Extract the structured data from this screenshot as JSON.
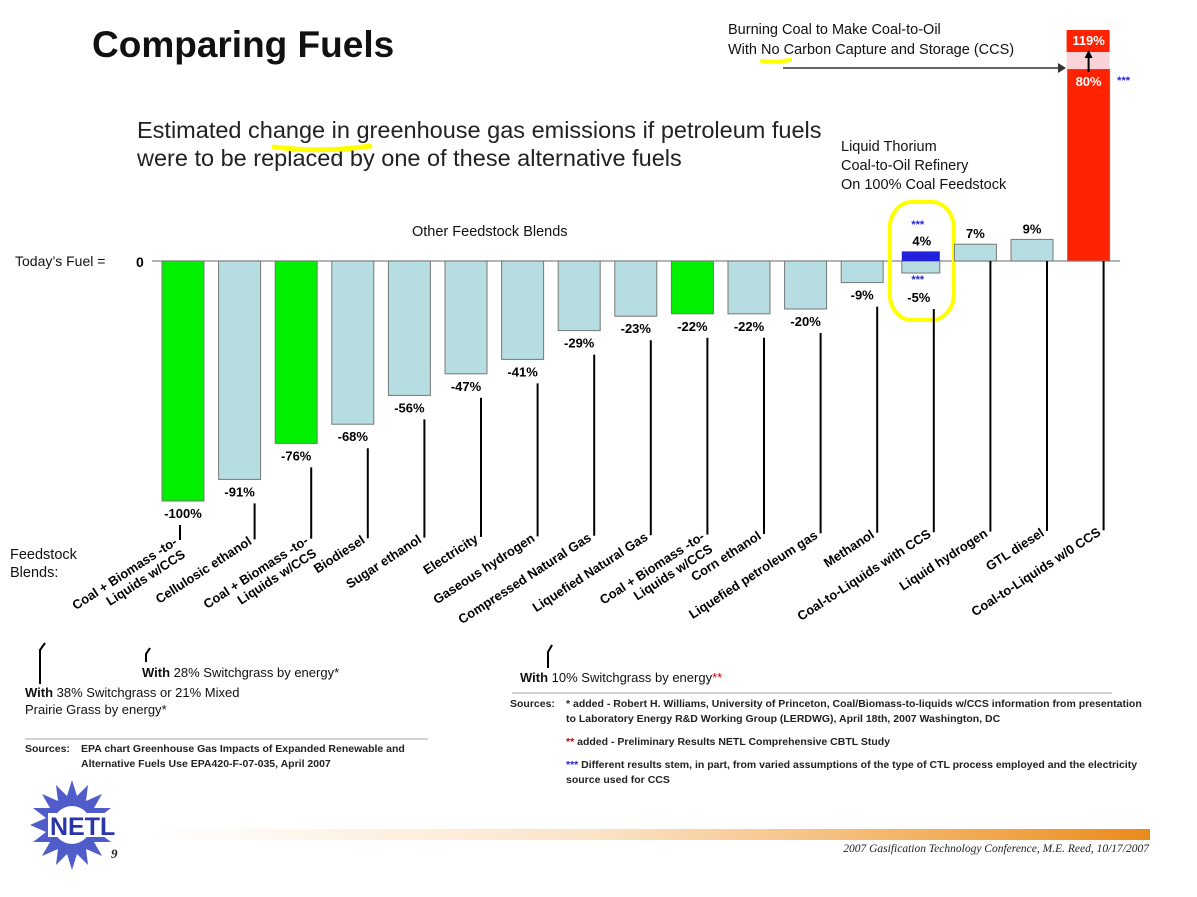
{
  "slide": {
    "title": "Comparing Fuels",
    "subtitle": {
      "before": "Estimated ",
      "highlight": "change",
      "after": " in greenhouse gas emissions if petroleum fuels were to be replaced by one of these alternative fuels"
    },
    "ccs_note": {
      "line1": "Burning Coal to Make Coal-to-Oil",
      "line2_before": "With ",
      "line2_highlight": "No",
      "line2_after": " Carbon Capture and Storage (CCS)"
    },
    "thorium_note": {
      "line1": "Liquid Thorium",
      "line2": "Coal-to-Oil Refinery",
      "line3": "On 100% Coal Feedstock"
    },
    "other_blends_label": "Other Feedstock Blends",
    "todays_fuel_label": "Today’s Fuel =",
    "feedstock_label": "Feedstock Blends:",
    "switchgrass_notes": {
      "note_38": {
        "line1_prefix": "With",
        "line1": " 38% Switchgrass or 21% Mixed",
        "line2": "Prairie Grass by energy",
        "star": "*"
      },
      "note_28": {
        "prefix": "With",
        "text": " 28% Switchgrass by energy",
        "star": "*"
      },
      "note_10": {
        "prefix": "With",
        "text": " 10% Switchgrass by energy",
        "star": "**"
      }
    },
    "sources_left": {
      "head": "Sources:",
      "text": "EPA chart Greenhouse Gas Impacts of Expanded Renewable and Alternative Fuels Use EPA420-F-07-035, April 2007"
    },
    "sources_right": {
      "head": "Sources:",
      "items": [
        {
          "star": "*",
          "text": " added - Robert H. Williams, University of Princeton, Coal/Biomass-to-liquids w/CCS information from presentation to Laboratory Energy R&D Working Group (LERDWG), April 18th, 2007 Washington, DC"
        },
        {
          "star": "**",
          "text": " added - Preliminary Results NETL Comprehensive CBTL Study"
        },
        {
          "star": "***",
          "text": " Different results stem, in part, from varied assumptions of the type of CTL process employed and the electricity source used for CCS"
        }
      ]
    },
    "logo_text": "NETL",
    "page_number": "9",
    "footer": "2007 Gasification Technology Conference, M.E. Reed, 10/17/2007"
  },
  "chart_data": {
    "type": "bar",
    "zero_label": "0",
    "unit": "%",
    "categories": [
      "Coal + Biomass -to-Liquids w/CCS",
      "Cellulosic ethanol",
      "Coal + Biomass -to-Liquids w/CCS",
      "Biodiesel",
      "Sugar ethanol",
      "Electricity",
      "Gaseous hydrogen",
      "Compressed Natural Gas",
      "Liquefied Natural Gas",
      "Coal + Biomass -to-Liquids w/CCS",
      "Corn ethanol",
      "Liquefied petroleum gas",
      "Methanol",
      "Coal-to-Liquids with CCS",
      "Liquid hydrogen",
      "GTL diesel",
      "Coal-to-Liquids w/0 CCS"
    ],
    "values": [
      -100,
      -91,
      -76,
      -68,
      -56,
      -47,
      -41,
      -29,
      -23,
      -22,
      -22,
      -20,
      -9,
      -5,
      7,
      9,
      80
    ],
    "value_labels": [
      "-100%",
      "-91%",
      "-76%",
      "-68%",
      "-56%",
      "-47%",
      "-41%",
      "-29%",
      "-23%",
      "-22%",
      "-22%",
      "-20%",
      "-9%",
      "-5%",
      "7%",
      "9%",
      "80%"
    ],
    "range_high": {
      "index": 13,
      "value": 4,
      "label": "4%"
    },
    "upper_extension": {
      "index": 16,
      "value": 119,
      "label": "119%"
    },
    "stars": {
      "ctl_ccs_upper": "***",
      "ctl_ccs_lower": "***",
      "ctl_no_ccs": "***"
    },
    "colors": {
      "light": "#b6dde1",
      "green": "#00f000",
      "red": "#ff2200",
      "blue": "#2222dd",
      "pink": "#f8d4d8",
      "highlight": "#ffff00"
    },
    "green_indices": [
      0,
      2,
      9
    ],
    "red_indices": [
      16
    ]
  }
}
